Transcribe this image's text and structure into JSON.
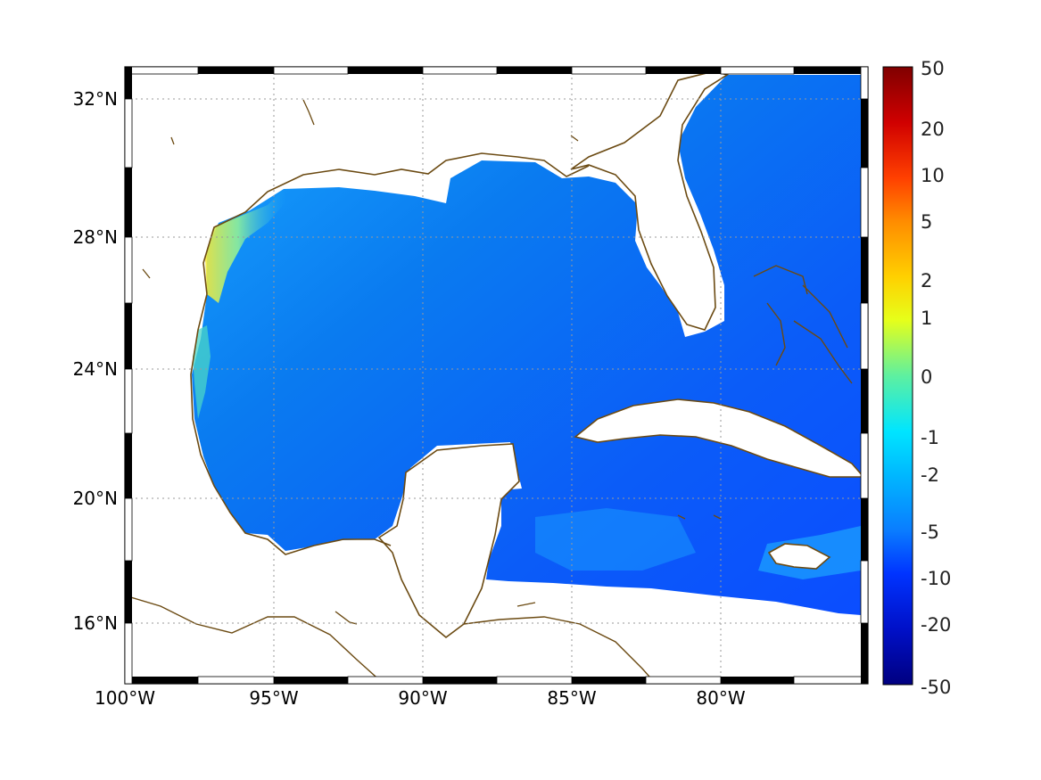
{
  "map": {
    "region": "Gulf of Mexico and western Caribbean",
    "ocean_gradient": [
      "#0b4fff",
      "#0b6cf5",
      "#0a86f0",
      "#16a6f5"
    ],
    "coastline_color": "#6b4a12",
    "longitude_labels": [
      "100°W",
      "95°W",
      "90°W",
      "85°W",
      "80°W"
    ],
    "latitude_labels": [
      "32°N",
      "28°N",
      "24°N",
      "20°N",
      "16°N"
    ],
    "grid": "dotted"
  },
  "colorbar": {
    "labels": [
      "50",
      "20",
      "10",
      "5",
      "2",
      "1",
      "0",
      "-1",
      "-2",
      "-5",
      "-10",
      "-20",
      "-50"
    ],
    "colors_top_to_bottom": [
      "#800000",
      "#d00000",
      "#ff4000",
      "#ff8c00",
      "#ffd000",
      "#e6ff1a",
      "#5ef0a0",
      "#00e5ff",
      "#00b8ff",
      "#0a7dff",
      "#0034ff",
      "#0010c8",
      "#000080"
    ]
  }
}
